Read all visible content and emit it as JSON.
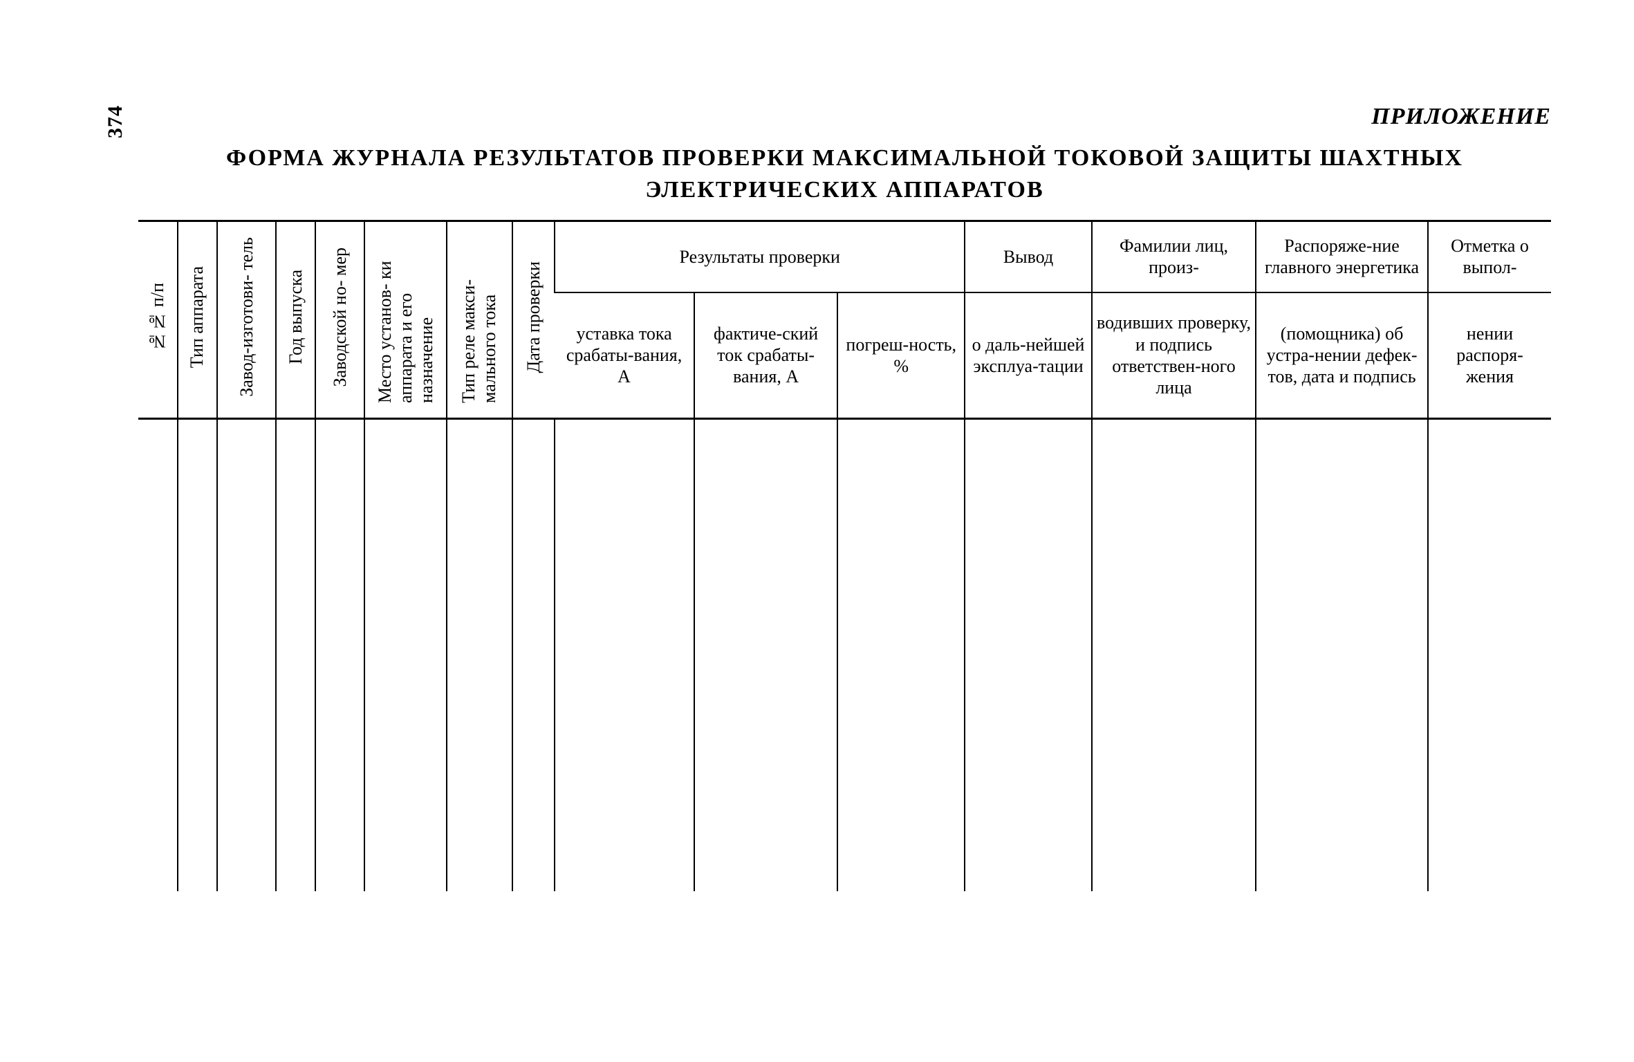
{
  "page_number": "374",
  "appendix_label": "ПРИЛОЖЕНИЕ",
  "title_line1": "ФОРМА ЖУРНАЛА РЕЗУЛЬТАТОВ ПРОВЕРКИ МАКСИМАЛЬНОЙ ТОКОВОЙ ЗАЩИТЫ ШАХТНЫХ",
  "title_line2": "ЭЛЕКТРИЧЕСКИХ АППАРАТОВ",
  "headers": {
    "c1": "№№ п/п",
    "c2": "Тип аппарата",
    "c3": "Завод-изготови-\nтель",
    "c4": "Год выпуска",
    "c5": "Заводской но-\nмер",
    "c6": "Место установ-\nки аппарата и\nего назначение",
    "c7": "Тип реле макси-\nмального тока",
    "c8": "Дата проверки",
    "results_group": "Результаты проверки",
    "c9": "уставка тока срабаты-вания, А",
    "c10": "фактиче-ский ток срабаты-вания, А",
    "c11": "погреш-ность, %",
    "c12_top": "Вывод",
    "c12_bot": "о даль-нейшей эксплуа-тации",
    "c13_top": "Фамилии лиц, произ-",
    "c13_bot": "водивших проверку, и подпись ответствен-ного лица",
    "c14_top": "Распоряже-ние главного энергетика",
    "c14_bot": "(помощника) об устра-нении дефек-тов, дата и подпись",
    "c15_top": "Отметка о выпол-",
    "c15_bot": "нении распоря-жения"
  },
  "style": {
    "text_color": "#000000",
    "background": "#ffffff",
    "rule_thick": 3,
    "rule_thin": 2,
    "header_fontsize": 26,
    "title_fontsize": 34,
    "body_row_height": 680
  }
}
